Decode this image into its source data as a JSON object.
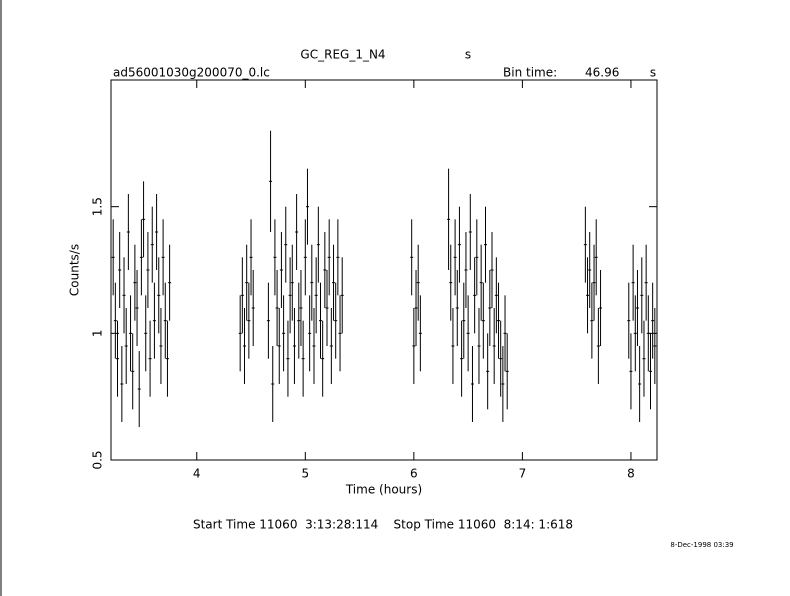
{
  "chart_data": {
    "type": "errorbar",
    "title": "GC_REG_1_N4",
    "title_unit": "s",
    "file_name": "ad56001030g200070_0.lc",
    "bin_time_label": "Bin time:",
    "bin_time": 46.96,
    "bin_time_unit": "s",
    "ylabel": "Counts/s",
    "xlabel": "Time (hours)",
    "time_range": "Start Time 11060  3:13:28:114    Stop Time 11060  8:14: 1:618",
    "date": "8-Dec-1998 03:39",
    "color": "#000000",
    "xlim": [
      3.21,
      8.24
    ],
    "xticks": [
      4,
      5,
      6,
      7,
      8
    ],
    "ylim": [
      0.5,
      2.0
    ],
    "yticks": [
      0.5,
      1,
      1.5
    ],
    "x": [
      3.23,
      3.25,
      3.27,
      3.29,
      3.31,
      3.33,
      3.35,
      3.37,
      3.39,
      3.41,
      3.43,
      3.45,
      3.47,
      3.49,
      3.51,
      3.53,
      3.55,
      3.57,
      3.59,
      3.61,
      3.63,
      3.65,
      3.67,
      3.69,
      3.71,
      3.73,
      3.75,
      4.4,
      4.42,
      4.44,
      4.46,
      4.48,
      4.5,
      4.52,
      4.66,
      4.68,
      4.7,
      4.72,
      4.74,
      4.76,
      4.78,
      4.8,
      4.82,
      4.84,
      4.86,
      4.88,
      4.9,
      4.92,
      4.94,
      4.96,
      4.98,
      5.0,
      5.02,
      5.04,
      5.06,
      5.08,
      5.1,
      5.12,
      5.14,
      5.16,
      5.18,
      5.2,
      5.22,
      5.24,
      5.26,
      5.28,
      5.3,
      5.32,
      5.34,
      5.98,
      6.0,
      6.02,
      6.04,
      6.06,
      6.32,
      6.34,
      6.36,
      6.38,
      6.4,
      6.42,
      6.44,
      6.46,
      6.48,
      6.5,
      6.52,
      6.54,
      6.56,
      6.58,
      6.6,
      6.62,
      6.64,
      6.66,
      6.68,
      6.7,
      6.72,
      6.74,
      6.76,
      6.78,
      6.8,
      6.82,
      6.84,
      6.86,
      7.58,
      7.6,
      7.62,
      7.64,
      7.66,
      7.68,
      7.7,
      7.72,
      7.98,
      8.0,
      8.02,
      8.04,
      8.06,
      8.08,
      8.1,
      8.12,
      8.14,
      8.16,
      8.18,
      8.2,
      8.22
    ],
    "values": [
      1.3,
      1.05,
      0.9,
      1.25,
      0.8,
      1.15,
      0.95,
      1.4,
      1.0,
      0.85,
      1.2,
      1.1,
      0.78,
      1.3,
      1.45,
      1.0,
      1.25,
      0.9,
      1.35,
      1.05,
      1.4,
      1.15,
      0.95,
      1.3,
      1.05,
      0.9,
      1.2,
      1.0,
      1.15,
      0.95,
      1.2,
      1.05,
      1.3,
      1.1,
      1.05,
      1.6,
      0.8,
      1.3,
      1.1,
      0.95,
      1.25,
      1.0,
      1.35,
      0.9,
      1.15,
      1.2,
      0.95,
      1.4,
      1.05,
      1.1,
      0.9,
      1.3,
      1.5,
      1.0,
      1.2,
      0.95,
      1.15,
      1.35,
      1.05,
      0.9,
      1.25,
      1.1,
      1.3,
      0.95,
      1.2,
      1.05,
      1.3,
      1.0,
      1.15,
      1.3,
      0.95,
      1.1,
      1.2,
      1.0,
      1.45,
      1.2,
      0.95,
      1.3,
      1.1,
      1.35,
      0.9,
      1.05,
      1.25,
      1.0,
      1.4,
      0.8,
      1.15,
      1.3,
      0.95,
      1.2,
      1.05,
      1.35,
      0.85,
      1.1,
      1.25,
      0.95,
      1.15,
      1.05,
      0.9,
      0.8,
      1.0,
      0.85,
      1.35,
      1.15,
      1.25,
      1.05,
      1.2,
      1.3,
      0.95,
      1.1,
      1.05,
      0.85,
      1.2,
      1.0,
      1.1,
      0.8,
      1.15,
      0.9,
      1.2,
      1.0,
      0.85,
      1.05,
      0.95
    ],
    "errors": [
      0.15,
      0.15,
      0.15,
      0.15,
      0.15,
      0.15,
      0.15,
      0.15,
      0.15,
      0.15,
      0.15,
      0.15,
      0.15,
      0.15,
      0.15,
      0.15,
      0.15,
      0.15,
      0.15,
      0.15,
      0.15,
      0.15,
      0.15,
      0.15,
      0.15,
      0.15,
      0.15,
      0.15,
      0.15,
      0.15,
      0.15,
      0.15,
      0.15,
      0.15,
      0.15,
      0.2,
      0.15,
      0.15,
      0.15,
      0.15,
      0.15,
      0.15,
      0.15,
      0.15,
      0.15,
      0.15,
      0.15,
      0.15,
      0.15,
      0.15,
      0.15,
      0.15,
      0.15,
      0.15,
      0.15,
      0.15,
      0.15,
      0.15,
      0.15,
      0.15,
      0.15,
      0.15,
      0.15,
      0.15,
      0.15,
      0.15,
      0.15,
      0.15,
      0.15,
      0.15,
      0.15,
      0.15,
      0.15,
      0.15,
      0.2,
      0.15,
      0.15,
      0.15,
      0.15,
      0.15,
      0.15,
      0.15,
      0.15,
      0.15,
      0.15,
      0.15,
      0.15,
      0.15,
      0.15,
      0.15,
      0.15,
      0.15,
      0.15,
      0.15,
      0.15,
      0.15,
      0.15,
      0.15,
      0.15,
      0.15,
      0.15,
      0.15,
      0.15,
      0.15,
      0.15,
      0.15,
      0.15,
      0.15,
      0.15,
      0.15,
      0.15,
      0.15,
      0.15,
      0.15,
      0.15,
      0.15,
      0.15,
      0.15,
      0.15,
      0.15,
      0.15,
      0.15,
      0.15
    ]
  }
}
